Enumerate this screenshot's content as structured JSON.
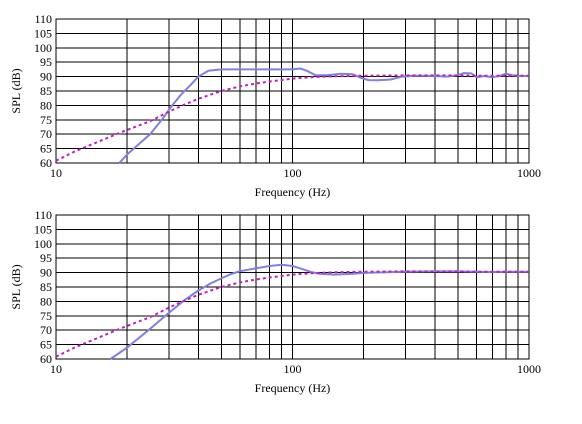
{
  "chart_data": [
    {
      "type": "line",
      "title": "",
      "xlabel": "Frequency (Hz)",
      "ylabel": "SPL (dB)",
      "xscale": "log",
      "xlim": [
        10,
        1000
      ],
      "ylim": [
        60,
        110
      ],
      "xticks": [
        "10",
        "100",
        "1000"
      ],
      "yticks": [
        "60",
        "65",
        "70",
        "75",
        "80",
        "85",
        "90",
        "95",
        "100",
        "105",
        "110"
      ],
      "grid": true,
      "series": [
        {
          "style": "solid",
          "color": "#8080e0",
          "x": [
            18.5,
            20,
            22,
            25,
            28,
            31,
            34,
            37,
            40,
            44,
            50,
            60,
            70,
            80,
            90,
            100,
            108,
            115,
            125,
            140,
            160,
            180,
            195,
            210,
            230,
            260,
            290,
            330,
            400,
            450,
            500,
            530,
            570,
            600,
            650,
            700,
            750,
            800,
            850,
            900,
            1000
          ],
          "y": [
            60,
            63,
            66,
            70,
            75,
            80,
            84,
            87,
            90,
            92,
            92.5,
            92.5,
            92.5,
            92.5,
            92.5,
            92.5,
            92.8,
            92,
            90.5,
            90.5,
            91,
            90.8,
            89.5,
            88.8,
            88.7,
            89,
            90,
            90.3,
            90.2,
            90,
            90.5,
            91.2,
            91.1,
            89.8,
            90.2,
            89.8,
            90.2,
            91,
            90.5,
            90.2,
            90.2
          ]
        },
        {
          "style": "dashed",
          "color": "#c020c0",
          "x": [
            10,
            12,
            15,
            18,
            20,
            25,
            30,
            35,
            40,
            50,
            60,
            70,
            80,
            100,
            120,
            150,
            200,
            300,
            400,
            500,
            600,
            700,
            800,
            1000
          ],
          "y": [
            60.8,
            64,
            67.3,
            70,
            71.5,
            74.5,
            77.8,
            80.3,
            82.3,
            85,
            86.6,
            87.6,
            88.3,
            89.3,
            89.8,
            90.1,
            90.3,
            90.4,
            90.4,
            90.4,
            90.3,
            90.3,
            90.3,
            90.3
          ]
        }
      ]
    },
    {
      "type": "line",
      "title": "",
      "xlabel": "Frequency (Hz)",
      "ylabel": "SPL (dB)",
      "xscale": "log",
      "xlim": [
        10,
        1000
      ],
      "ylim": [
        60,
        110
      ],
      "xticks": [
        "10",
        "100",
        "1000"
      ],
      "yticks": [
        "60",
        "65",
        "70",
        "75",
        "80",
        "85",
        "90",
        "95",
        "100",
        "105",
        "110"
      ],
      "grid": true,
      "series": [
        {
          "style": "solid",
          "color": "#8080e0",
          "x": [
            17,
            20,
            25,
            30,
            35,
            40,
            45,
            50,
            55,
            60,
            70,
            80,
            90,
            100,
            110,
            120,
            130,
            150,
            180,
            200,
            250,
            300,
            400,
            500,
            600,
            700,
            800,
            1000
          ],
          "y": [
            60,
            64,
            70.5,
            76,
            80.5,
            83.8,
            86.2,
            88,
            89.5,
            90.5,
            91.5,
            92.3,
            92.7,
            92.3,
            91.2,
            90.2,
            89.6,
            89.3,
            89.6,
            89.9,
            90.1,
            90.3,
            90.4,
            90.4,
            90.3,
            90.2,
            90.3,
            90.3
          ]
        },
        {
          "style": "dashed",
          "color": "#c020c0",
          "x": [
            10,
            12,
            15,
            18,
            20,
            25,
            30,
            35,
            40,
            50,
            60,
            70,
            80,
            100,
            120,
            150,
            200,
            300,
            400,
            500,
            600,
            700,
            800,
            1000
          ],
          "y": [
            60.8,
            64,
            67.3,
            70,
            71.5,
            74.5,
            77.8,
            80.3,
            82.3,
            85,
            86.6,
            87.6,
            88.3,
            89.3,
            89.8,
            90.1,
            90.3,
            90.4,
            90.4,
            90.4,
            90.3,
            90.3,
            90.3,
            90.3
          ]
        }
      ]
    }
  ]
}
